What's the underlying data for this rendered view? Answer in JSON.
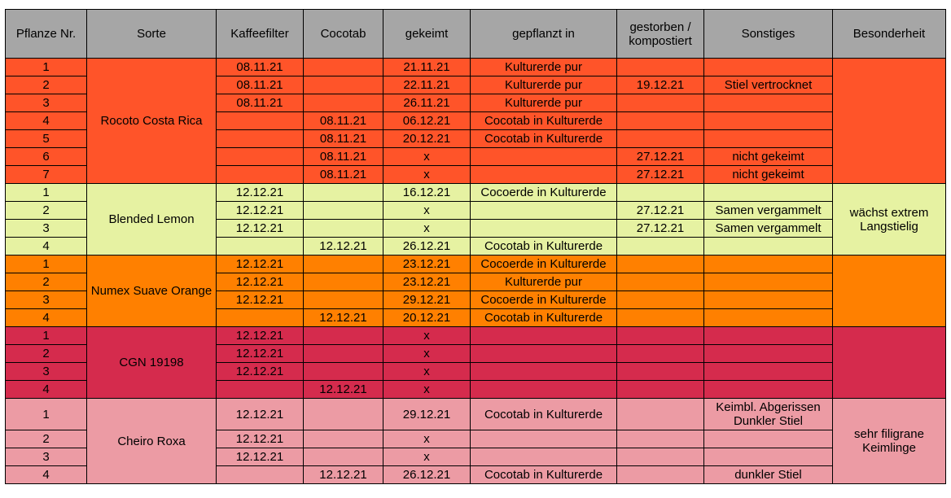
{
  "headers": [
    "Pflanze Nr.",
    "Sorte",
    "Kaffeefilter",
    "Cocotab",
    "gekeimt",
    "gepflanzt in",
    "gestorben / kompostiert",
    "Sonstiges",
    "Besonderheit"
  ],
  "groups": [
    {
      "sorte": "Rocoto Costa Rica",
      "besonderheit": "",
      "color": "#ff5429",
      "rows": [
        {
          "nr": "1",
          "kaffeefilter": "08.11.21",
          "cocotab": "",
          "gekeimt": "21.11.21",
          "gepflanzt": "Kulturerde pur",
          "gestorben": "",
          "sonstiges": ""
        },
        {
          "nr": "2",
          "kaffeefilter": "08.11.21",
          "cocotab": "",
          "gekeimt": "22.11.21",
          "gepflanzt": "Kulturerde pur",
          "gestorben": "19.12.21",
          "sonstiges": "Stiel vertrocknet"
        },
        {
          "nr": "3",
          "kaffeefilter": "08.11.21",
          "cocotab": "",
          "gekeimt": "26.11.21",
          "gepflanzt": "Kulturerde pur",
          "gestorben": "",
          "sonstiges": ""
        },
        {
          "nr": "4",
          "kaffeefilter": "",
          "cocotab": "08.11.21",
          "gekeimt": "06.12.21",
          "gepflanzt": "Cocotab in Kulturerde",
          "gestorben": "",
          "sonstiges": ""
        },
        {
          "nr": "5",
          "kaffeefilter": "",
          "cocotab": "08.11.21",
          "gekeimt": "20.12.21",
          "gepflanzt": "Cocotab in Kulturerde",
          "gestorben": "",
          "sonstiges": ""
        },
        {
          "nr": "6",
          "kaffeefilter": "",
          "cocotab": "08.11.21",
          "gekeimt": "x",
          "gepflanzt": "",
          "gestorben": "27.12.21",
          "sonstiges": "nicht gekeimt"
        },
        {
          "nr": "7",
          "kaffeefilter": "",
          "cocotab": "08.11.21",
          "gekeimt": "x",
          "gepflanzt": "",
          "gestorben": "27.12.21",
          "sonstiges": "nicht gekeimt"
        }
      ]
    },
    {
      "sorte": "Blended Lemon",
      "besonderheit": "wächst extrem Langstielig",
      "color": "#e6f2a2",
      "rows": [
        {
          "nr": "1",
          "kaffeefilter": "12.12.21",
          "cocotab": "",
          "gekeimt": "16.12.21",
          "gepflanzt": "Cocoerde in Kulturerde",
          "gestorben": "",
          "sonstiges": ""
        },
        {
          "nr": "2",
          "kaffeefilter": "12.12.21",
          "cocotab": "",
          "gekeimt": "x",
          "gepflanzt": "",
          "gestorben": "27.12.21",
          "sonstiges": "Samen vergammelt"
        },
        {
          "nr": "3",
          "kaffeefilter": "12.12.21",
          "cocotab": "",
          "gekeimt": "x",
          "gepflanzt": "",
          "gestorben": "27.12.21",
          "sonstiges": "Samen vergammelt"
        },
        {
          "nr": "4",
          "kaffeefilter": "",
          "cocotab": "12.12.21",
          "gekeimt": "26.12.21",
          "gepflanzt": "Cocotab in Kulturerde",
          "gestorben": "",
          "sonstiges": ""
        }
      ]
    },
    {
      "sorte": "Numex Suave Orange",
      "besonderheit": "",
      "color": "#ff8000",
      "rows": [
        {
          "nr": "1",
          "kaffeefilter": "12.12.21",
          "cocotab": "",
          "gekeimt": "23.12.21",
          "gepflanzt": "Cocoerde in Kulturerde",
          "gestorben": "",
          "sonstiges": ""
        },
        {
          "nr": "2",
          "kaffeefilter": "12.12.21",
          "cocotab": "",
          "gekeimt": "23.12.21",
          "gepflanzt": "Kulturerde pur",
          "gestorben": "",
          "sonstiges": ""
        },
        {
          "nr": "3",
          "kaffeefilter": "12.12.21",
          "cocotab": "",
          "gekeimt": "29.12.21",
          "gepflanzt": "Cocoerde in Kulturerde",
          "gestorben": "",
          "sonstiges": ""
        },
        {
          "nr": "4",
          "kaffeefilter": "",
          "cocotab": "12.12.21",
          "gekeimt": "20.12.21",
          "gepflanzt": "Cocotab in Kulturerde",
          "gestorben": "",
          "sonstiges": ""
        }
      ]
    },
    {
      "sorte": "CGN 19198",
      "besonderheit": "",
      "color": "#d52b4d",
      "rows": [
        {
          "nr": "1",
          "kaffeefilter": "12.12.21",
          "cocotab": "",
          "gekeimt": "x",
          "gepflanzt": "",
          "gestorben": "",
          "sonstiges": ""
        },
        {
          "nr": "2",
          "kaffeefilter": "12.12.21",
          "cocotab": "",
          "gekeimt": "x",
          "gepflanzt": "",
          "gestorben": "",
          "sonstiges": ""
        },
        {
          "nr": "3",
          "kaffeefilter": "12.12.21",
          "cocotab": "",
          "gekeimt": "x",
          "gepflanzt": "",
          "gestorben": "",
          "sonstiges": ""
        },
        {
          "nr": "4",
          "kaffeefilter": "",
          "cocotab": "12.12.21",
          "gekeimt": "x",
          "gepflanzt": "",
          "gestorben": "",
          "sonstiges": ""
        }
      ]
    },
    {
      "sorte": "Cheiro Roxa",
      "besonderheit": "sehr filigrane Keimlinge",
      "color": "#ec9ba4",
      "rows": [
        {
          "nr": "1",
          "kaffeefilter": "12.12.21",
          "cocotab": "",
          "gekeimt": "29.12.21",
          "gepflanzt": "Cocotab in Kulturerde",
          "gestorben": "",
          "sonstiges": "Keimbl. Abgerissen Dunkler Stiel"
        },
        {
          "nr": "2",
          "kaffeefilter": "12.12.21",
          "cocotab": "",
          "gekeimt": "x",
          "gepflanzt": "",
          "gestorben": "",
          "sonstiges": ""
        },
        {
          "nr": "3",
          "kaffeefilter": "12.12.21",
          "cocotab": "",
          "gekeimt": "x",
          "gepflanzt": "",
          "gestorben": "",
          "sonstiges": ""
        },
        {
          "nr": "4",
          "kaffeefilter": "",
          "cocotab": "12.12.21",
          "gekeimt": "26.12.21",
          "gepflanzt": "Cocotab in Kulturerde",
          "gestorben": "",
          "sonstiges": "dunkler Stiel"
        }
      ]
    }
  ]
}
